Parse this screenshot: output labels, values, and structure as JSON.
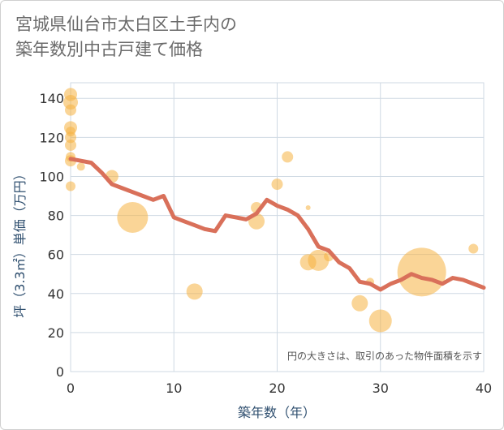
{
  "title_lines": [
    "宮城県仙台市太白区土手内の",
    "築年数別中古戸建て価格"
  ],
  "chart_data": {
    "type": "scatter",
    "title": "宮城県仙台市太白区土手内の築年数別中古戸建て価格",
    "xlabel": "築年数（年）",
    "ylabel": "坪（3.3㎡）単価（万円）",
    "xlim": [
      0,
      40
    ],
    "ylim": [
      0,
      148
    ],
    "xticks": [
      0,
      10,
      20,
      30,
      40
    ],
    "yticks": [
      0,
      20,
      40,
      60,
      80,
      100,
      120,
      140
    ],
    "grid": true,
    "note": "円の大きさは、取引のあった物件面積を示す",
    "colors": {
      "bubble": "#f5b342",
      "line": "#d9705a",
      "grid": "#cfd9e3",
      "axis": "#2f4f6f"
    },
    "bubbles": [
      {
        "x": 0,
        "y": 142,
        "size": 8
      },
      {
        "x": 0,
        "y": 138,
        "size": 9
      },
      {
        "x": 0,
        "y": 134,
        "size": 7
      },
      {
        "x": 0,
        "y": 125,
        "size": 8
      },
      {
        "x": 0,
        "y": 123,
        "size": 6
      },
      {
        "x": 0,
        "y": 120,
        "size": 7
      },
      {
        "x": 0,
        "y": 116,
        "size": 7
      },
      {
        "x": 0,
        "y": 110,
        "size": 6
      },
      {
        "x": 0,
        "y": 108,
        "size": 7
      },
      {
        "x": 0,
        "y": 95,
        "size": 6
      },
      {
        "x": 1,
        "y": 105,
        "size": 5
      },
      {
        "x": 4,
        "y": 100,
        "size": 8
      },
      {
        "x": 6,
        "y": 79,
        "size": 19
      },
      {
        "x": 12,
        "y": 41,
        "size": 10
      },
      {
        "x": 18,
        "y": 84,
        "size": 7
      },
      {
        "x": 18,
        "y": 77,
        "size": 10
      },
      {
        "x": 20,
        "y": 96,
        "size": 7
      },
      {
        "x": 21,
        "y": 110,
        "size": 7
      },
      {
        "x": 23,
        "y": 84,
        "size": 3
      },
      {
        "x": 23,
        "y": 56,
        "size": 10
      },
      {
        "x": 24,
        "y": 57,
        "size": 13
      },
      {
        "x": 25,
        "y": 59,
        "size": 6
      },
      {
        "x": 28,
        "y": 35,
        "size": 10
      },
      {
        "x": 29,
        "y": 46,
        "size": 5
      },
      {
        "x": 30,
        "y": 26,
        "size": 14
      },
      {
        "x": 34,
        "y": 51,
        "size": 30
      },
      {
        "x": 39,
        "y": 63,
        "size": 6
      }
    ],
    "trend": {
      "x": [
        0,
        1,
        2,
        3,
        4,
        5,
        6,
        7,
        8,
        9,
        10,
        11,
        12,
        13,
        14,
        15,
        16,
        17,
        18,
        19,
        20,
        21,
        22,
        23,
        24,
        25,
        26,
        27,
        28,
        29,
        30,
        31,
        32,
        33,
        34,
        35,
        36,
        37,
        38,
        39,
        40
      ],
      "y": [
        109,
        108,
        107,
        102,
        96,
        94,
        92,
        90,
        88,
        90,
        79,
        77,
        75,
        73,
        72,
        80,
        79,
        78,
        81,
        88,
        85,
        83,
        80,
        73,
        64,
        62,
        56,
        53,
        46,
        45,
        42,
        45,
        47,
        50,
        48,
        47,
        45,
        48,
        47,
        45,
        43
      ]
    }
  }
}
